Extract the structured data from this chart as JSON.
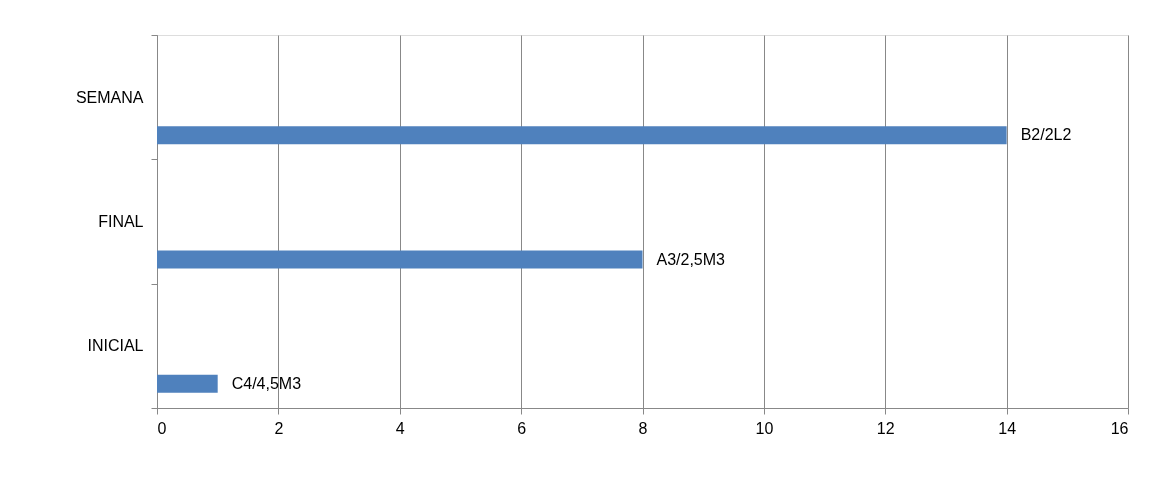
{
  "chart_data": {
    "type": "bar",
    "orientation": "horizontal",
    "categories": [
      "SEMANA",
      "FINAL",
      "INICIAL"
    ],
    "series": [
      {
        "color": "#4f81bd",
        "values": [
          14,
          8,
          1
        ],
        "value_labels": [
          "B2/2L2",
          "A3/2,5M3",
          "C4/4,5M3"
        ]
      }
    ],
    "xlim": [
      0,
      16
    ],
    "xticks": [
      0,
      2,
      4,
      6,
      8,
      10,
      12,
      14,
      16
    ],
    "grid": "x"
  }
}
